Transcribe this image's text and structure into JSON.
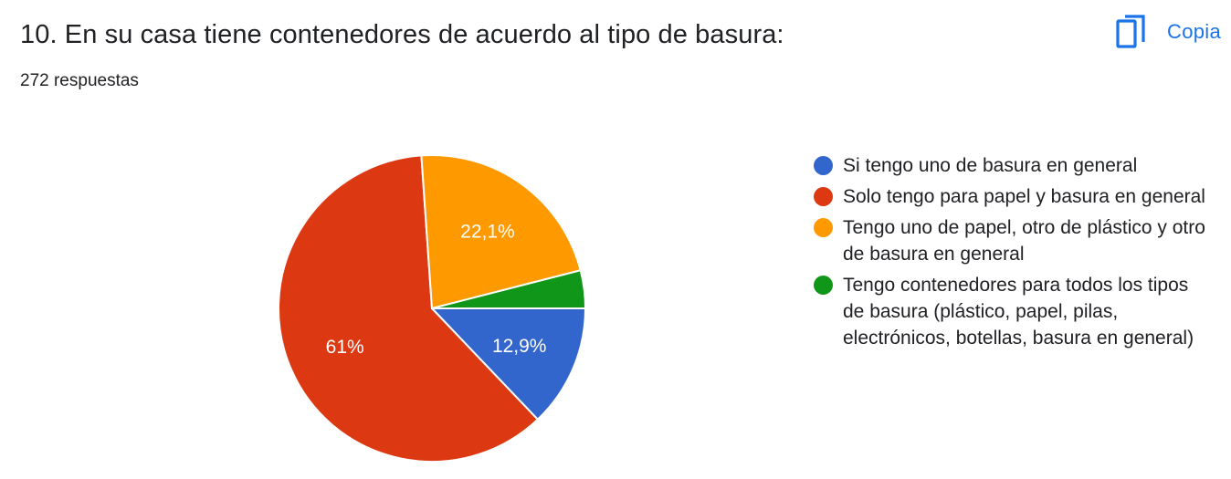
{
  "header": {
    "title": "10. En su casa tiene contenedores de acuerdo al tipo de basura:",
    "response_count": "272 respuestas",
    "copy_label": "Copia",
    "copy_icon": "copy-icon"
  },
  "colors": {
    "accent": "#1a73e8",
    "blue": "#3366cc",
    "red": "#dc3912",
    "orange": "#ff9900",
    "green": "#109618"
  },
  "chart_data": {
    "type": "pie",
    "title": "",
    "start_angle_deg": 90,
    "direction": "clockwise",
    "slices": [
      {
        "label": "Si tengo uno de basura en general",
        "value": 12.9,
        "display": "12,9%",
        "color": "#3366cc"
      },
      {
        "label": "Solo tengo para papel y basura en general",
        "value": 61.0,
        "display": "61%",
        "color": "#dc3912"
      },
      {
        "label": "Tengo uno de papel, otro de plástico y otro de basura en general",
        "value": 22.1,
        "display": "22,1%",
        "color": "#ff9900"
      },
      {
        "label": "Tengo contenedores para todos los tipos de basura (plástico, papel, pilas, electrónicos, botellas, basura en general)",
        "value": 4.0,
        "display": "",
        "color": "#109618"
      }
    ],
    "legend_position": "right"
  }
}
